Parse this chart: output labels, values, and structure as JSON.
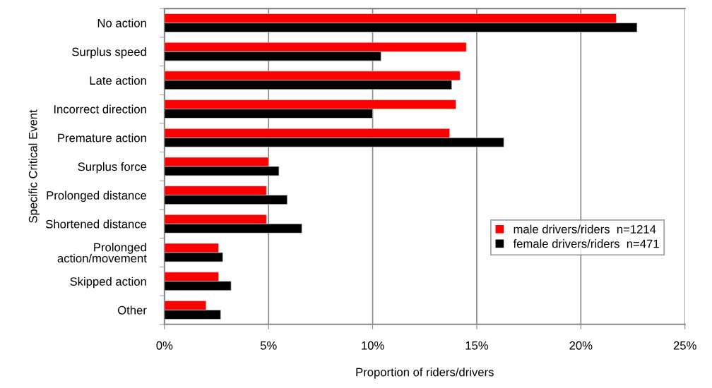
{
  "chart_data": {
    "type": "bar",
    "orientation": "horizontal",
    "xlabel": "Proportion of riders/drivers",
    "ylabel": "Specific Critical Event",
    "categories": [
      "No action",
      "Surplus speed",
      "Late action",
      "Incorrect direction",
      "Premature action",
      "Surplus force",
      "Prolonged distance",
      "Shortened distance",
      "Prolonged\naction/movement",
      "Skipped action",
      "Other"
    ],
    "series": [
      {
        "name": "male drivers/riders  n=1214",
        "color": "#ff0000",
        "values": [
          21.7,
          14.5,
          14.2,
          14.0,
          13.7,
          5.0,
          4.9,
          4.9,
          2.6,
          2.6,
          2.0
        ]
      },
      {
        "name": "female drivers/riders  n=471",
        "color": "#000000",
        "values": [
          22.7,
          10.4,
          13.8,
          10.0,
          16.3,
          5.5,
          5.9,
          6.6,
          2.8,
          3.2,
          2.7
        ]
      }
    ],
    "xlim": [
      0,
      25
    ],
    "xticks": [
      {
        "value": 0,
        "label": "0%"
      },
      {
        "value": 5,
        "label": "5%"
      },
      {
        "value": 10,
        "label": "10%"
      },
      {
        "value": 15,
        "label": "15%"
      },
      {
        "value": 20,
        "label": "20%"
      },
      {
        "value": 25,
        "label": "25%"
      }
    ],
    "grid": "x",
    "legend": "lower right"
  }
}
